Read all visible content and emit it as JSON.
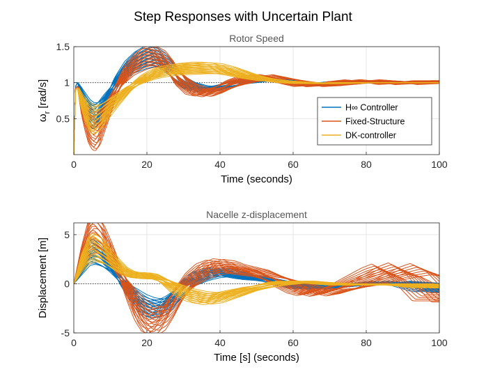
{
  "figure": {
    "title": "Step Responses with Uncertain Plant"
  },
  "colors": {
    "hinf": "#0072BD",
    "fixed": "#D95319",
    "dk": "#EDB120",
    "reference": "#000000",
    "grid": "#e6e6e6",
    "axis": "#262626"
  },
  "chart_data": [
    {
      "type": "line",
      "title": "Rotor Speed",
      "xlabel": "Time (seconds)",
      "ylabel": "ω_r [rad/s]",
      "ylabel_main": "ω",
      "ylabel_sub": "r",
      "ylabel_unit": " [rad/s]",
      "xlim": [
        0,
        100
      ],
      "ylim": [
        0,
        1.5
      ],
      "xticks": [
        0,
        20,
        40,
        60,
        80,
        100
      ],
      "yticks": [
        0.5,
        1,
        1.5
      ],
      "xtick_labels": [
        "0",
        "20",
        "40",
        "60",
        "80",
        "100"
      ],
      "ytick_labels": [
        "0.5",
        "1",
        "1.5"
      ],
      "grid": true,
      "legend_position": "right",
      "reference_line": 1,
      "series": [
        {
          "name": "H∞ Controller",
          "color": "#0072BD",
          "count": 20,
          "x": [
            0,
            0.5,
            1,
            1.5,
            2,
            3,
            4,
            5,
            6,
            7,
            8,
            10,
            12,
            15,
            18,
            20,
            22,
            24,
            26,
            28,
            30,
            33,
            36,
            39,
            42,
            45,
            48,
            52,
            56,
            60,
            65,
            70,
            75,
            80,
            85,
            90,
            95,
            100
          ],
          "y": [
            0,
            0.95,
            1.0,
            0.95,
            0.88,
            0.75,
            0.62,
            0.55,
            0.55,
            0.62,
            0.72,
            0.88,
            1.05,
            1.22,
            1.32,
            1.36,
            1.35,
            1.3,
            1.2,
            1.1,
            1.0,
            0.93,
            0.9,
            0.93,
            0.97,
            1.0,
            1.03,
            1.05,
            1.03,
            1.0,
            0.98,
            0.99,
            1.01,
            1.02,
            1.0,
            0.99,
            1.0,
            1.0
          ]
        },
        {
          "name": "Fixed-Structure",
          "color": "#D95319",
          "count": 20,
          "x": [
            0,
            0.5,
            1,
            1.5,
            2,
            3,
            4,
            5,
            6,
            7,
            8,
            10,
            12,
            15,
            18,
            20,
            22,
            24,
            26,
            28,
            30,
            33,
            36,
            39,
            42,
            45,
            48,
            52,
            56,
            60,
            65,
            70,
            75,
            80,
            85,
            90,
            95,
            100
          ],
          "y": [
            0,
            0.92,
            0.95,
            0.85,
            0.72,
            0.55,
            0.42,
            0.35,
            0.33,
            0.38,
            0.5,
            0.72,
            0.95,
            1.18,
            1.3,
            1.35,
            1.36,
            1.32,
            1.22,
            1.1,
            0.98,
            0.88,
            0.86,
            0.9,
            0.96,
            1.02,
            1.06,
            1.08,
            1.05,
            1.0,
            0.96,
            0.97,
            1.01,
            1.03,
            1.01,
            0.98,
            1.0,
            1.02
          ]
        },
        {
          "name": "DK-controller",
          "color": "#EDB120",
          "count": 20,
          "x": [
            0,
            0.5,
            1,
            1.5,
            2,
            3,
            4,
            5,
            6,
            7,
            8,
            10,
            12,
            15,
            18,
            20,
            22,
            24,
            26,
            28,
            30,
            33,
            36,
            39,
            42,
            45,
            48,
            52,
            56,
            60,
            65,
            70,
            75,
            80,
            85,
            90,
            95,
            100
          ],
          "y": [
            0,
            0.9,
            0.92,
            0.85,
            0.76,
            0.64,
            0.55,
            0.5,
            0.5,
            0.53,
            0.58,
            0.68,
            0.78,
            0.92,
            1.02,
            1.08,
            1.12,
            1.15,
            1.17,
            1.18,
            1.19,
            1.2,
            1.2,
            1.19,
            1.16,
            1.12,
            1.08,
            1.04,
            1.02,
            1.0,
            0.99,
            0.99,
            1.0,
            1.0,
            1.0,
            1.0,
            1.0,
            1.0
          ]
        }
      ]
    },
    {
      "type": "line",
      "title": "Nacelle z-displacement",
      "xlabel": "Time [s] (seconds)",
      "ylabel": "Displacement [m]",
      "xlim": [
        0,
        100
      ],
      "ylim": [
        -5,
        6.2
      ],
      "xticks": [
        0,
        20,
        40,
        60,
        80,
        100
      ],
      "yticks": [
        -5,
        0,
        5
      ],
      "xtick_labels": [
        "0",
        "20",
        "40",
        "60",
        "80",
        "100"
      ],
      "ytick_labels": [
        "-5",
        "0",
        "5"
      ],
      "grid": true,
      "reference_line": 0,
      "series": [
        {
          "name": "H∞ Controller",
          "color": "#0072BD",
          "count": 20,
          "x": [
            0,
            2,
            4,
            5,
            6,
            8,
            10,
            12,
            14,
            16,
            18,
            20,
            22,
            24,
            26,
            28,
            30,
            33,
            36,
            39,
            42,
            45,
            48,
            51,
            54,
            57,
            60,
            63,
            66,
            70,
            75,
            80,
            85,
            88,
            92,
            96,
            100
          ],
          "y": [
            0,
            1.5,
            3.0,
            3.2,
            3.1,
            2.6,
            1.8,
            0.8,
            -0.2,
            -1.0,
            -1.8,
            -2.3,
            -2.5,
            -2.3,
            -1.8,
            -1.1,
            -0.3,
            0.5,
            1.0,
            1.2,
            1.1,
            0.8,
            0.6,
            0.5,
            0.3,
            0.1,
            -0.1,
            -0.3,
            -0.4,
            -0.3,
            -0.1,
            0.0,
            0.1,
            0.2,
            0.0,
            -0.3,
            -0.6
          ]
        },
        {
          "name": "Fixed-Structure",
          "color": "#D95319",
          "count": 20,
          "x": [
            0,
            2,
            4,
            5,
            6,
            8,
            10,
            12,
            14,
            16,
            18,
            20,
            22,
            24,
            26,
            28,
            30,
            33,
            36,
            39,
            42,
            45,
            48,
            51,
            54,
            57,
            60,
            63,
            66,
            70,
            75,
            80,
            85,
            88,
            92,
            96,
            100
          ],
          "y": [
            0,
            2.5,
            4.5,
            5.0,
            5.0,
            4.3,
            3.0,
            1.5,
            0.0,
            -1.5,
            -2.8,
            -3.6,
            -3.8,
            -3.4,
            -2.5,
            -1.4,
            -0.3,
            0.8,
            1.5,
            1.8,
            1.7,
            1.4,
            1.2,
            1.0,
            0.6,
            0.2,
            -0.3,
            -0.7,
            -0.9,
            -0.7,
            -0.2,
            0.5,
            1.2,
            1.5,
            1.0,
            -0.2,
            -1.3
          ]
        },
        {
          "name": "DK-controller",
          "color": "#EDB120",
          "count": 20,
          "x": [
            0,
            2,
            4,
            5,
            6,
            8,
            10,
            12,
            14,
            16,
            18,
            20,
            22,
            24,
            26,
            28,
            30,
            33,
            36,
            39,
            42,
            45,
            48,
            51,
            54,
            57,
            60,
            63,
            66,
            70,
            75,
            80,
            85,
            88,
            92,
            96,
            100
          ],
          "y": [
            0,
            2.0,
            3.3,
            3.6,
            3.6,
            3.2,
            2.5,
            1.8,
            1.2,
            0.9,
            0.8,
            0.8,
            0.7,
            0.4,
            0.0,
            -0.5,
            -0.9,
            -1.3,
            -1.5,
            -1.4,
            -1.1,
            -0.8,
            -0.5,
            -0.3,
            -0.1,
            0.1,
            0.2,
            0.2,
            0.1,
            0.0,
            -0.1,
            -0.1,
            0.0,
            0.0,
            -0.1,
            -0.2,
            -0.3
          ]
        }
      ]
    }
  ]
}
